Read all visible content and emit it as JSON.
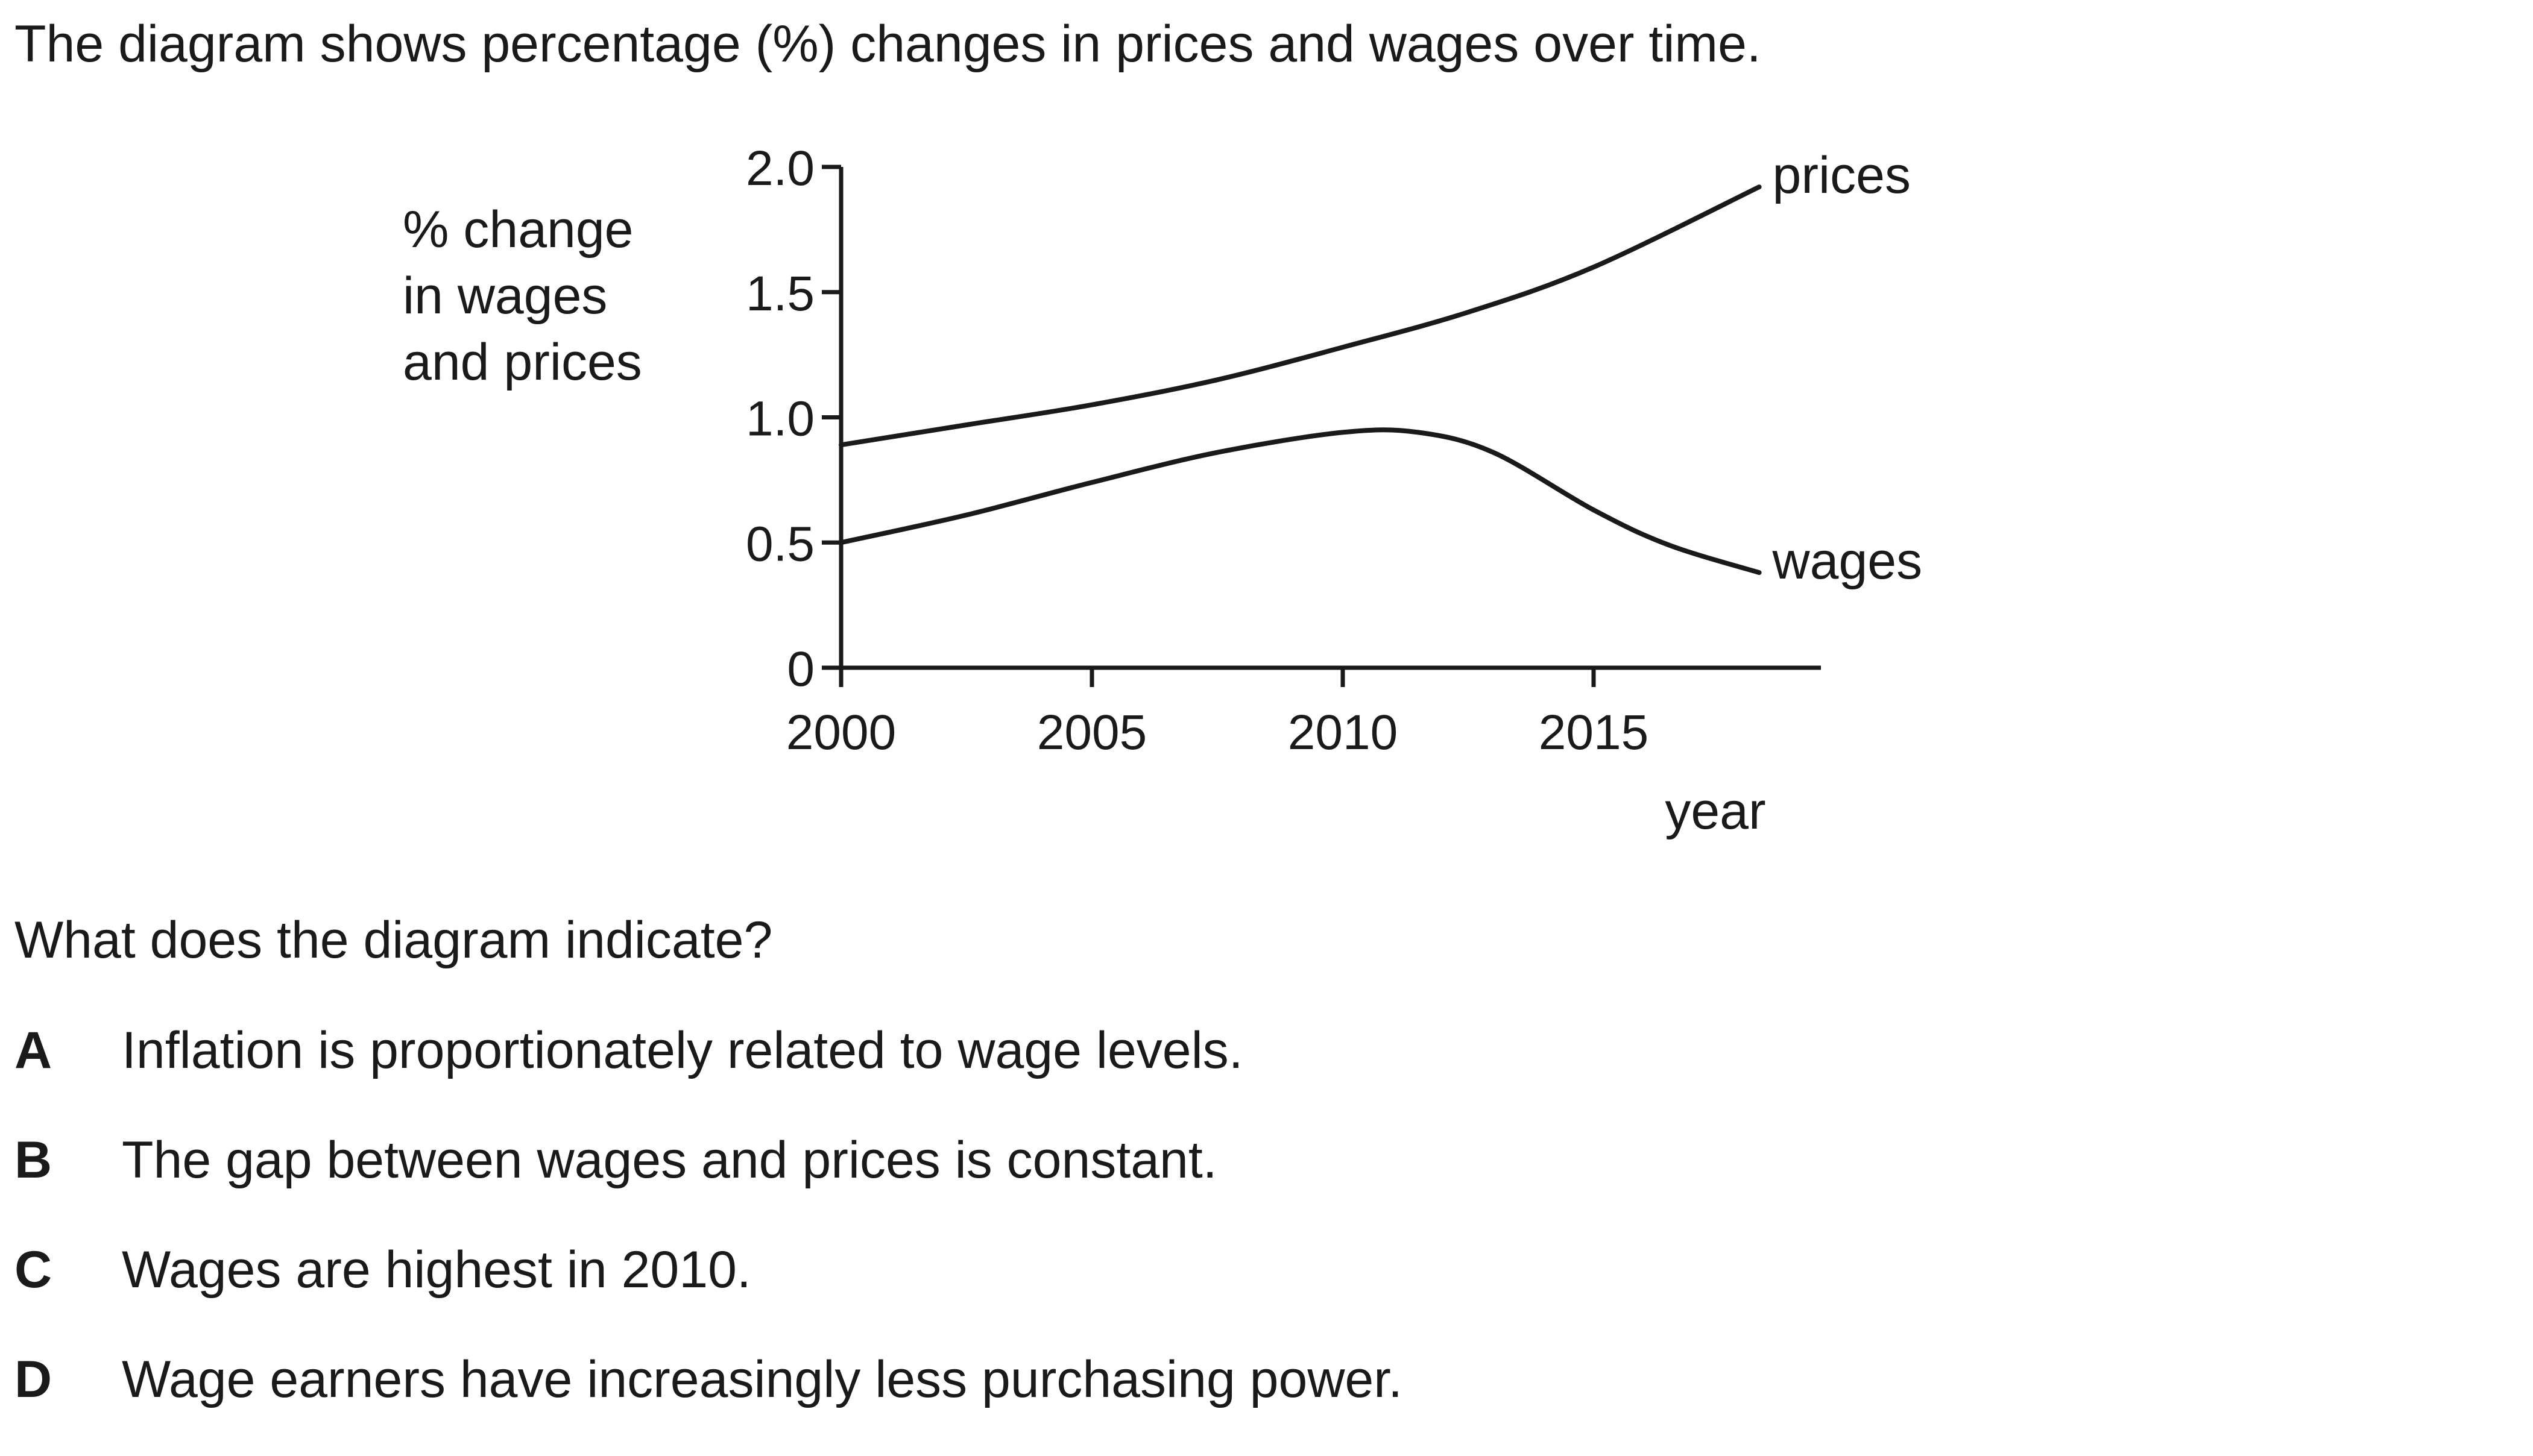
{
  "intro": "The diagram shows percentage (%) changes in prices and wages over time.",
  "question": "What does the diagram indicate?",
  "options": [
    {
      "letter": "A",
      "text": "Inflation is proportionately related to wage levels."
    },
    {
      "letter": "B",
      "text": "The gap between wages and prices is constant."
    },
    {
      "letter": "C",
      "text": "Wages are highest in 2010."
    },
    {
      "letter": "D",
      "text": "Wage earners have increasingly less purchasing power."
    }
  ],
  "chart_data": {
    "type": "line",
    "title": "",
    "ylabel": [
      "% change",
      "in wages",
      "and prices"
    ],
    "xlabel": "year",
    "xlim": [
      2000,
      2019.5
    ],
    "ylim": [
      0,
      2.0
    ],
    "xticks": [
      2000,
      2005,
      2010,
      2015
    ],
    "xtick_labels": [
      "2000",
      "2005",
      "2010",
      "2015"
    ],
    "yticks": [
      0,
      0.5,
      1.0,
      1.5,
      2.0
    ],
    "ytick_labels": [
      "0",
      "0.5",
      "1.0",
      "1.5",
      "2.0"
    ],
    "grid": false,
    "legend": "none",
    "series": [
      {
        "name": "prices",
        "color": "#1a1a1a",
        "x": [
          2000,
          2002.5,
          2005,
          2007.5,
          2010,
          2012.5,
          2015,
          2018.3
        ],
        "y": [
          0.89,
          0.97,
          1.05,
          1.15,
          1.28,
          1.42,
          1.6,
          1.92
        ]
      },
      {
        "name": "wages",
        "color": "#1a1a1a",
        "x": [
          2000,
          2002.5,
          2005,
          2007.5,
          2010,
          2011.5,
          2013,
          2015,
          2016.5,
          2018.3
        ],
        "y": [
          0.5,
          0.61,
          0.74,
          0.86,
          0.94,
          0.94,
          0.86,
          0.63,
          0.49,
          0.38
        ]
      }
    ]
  }
}
